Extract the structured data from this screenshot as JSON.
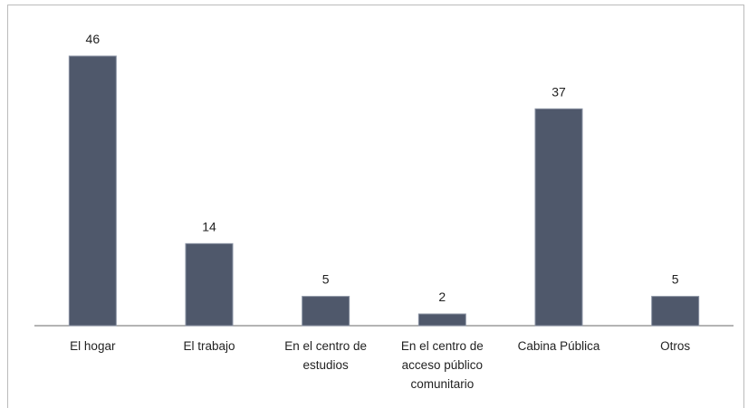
{
  "chart_data": {
    "type": "bar",
    "categories": [
      "El hogar",
      "El trabajo",
      "En el centro de estudios",
      "En el centro de acceso público comunitario",
      "Cabina Pública",
      "Otros"
    ],
    "values": [
      46,
      14,
      5,
      2,
      37,
      5
    ],
    "color": "#4f586b"
  }
}
